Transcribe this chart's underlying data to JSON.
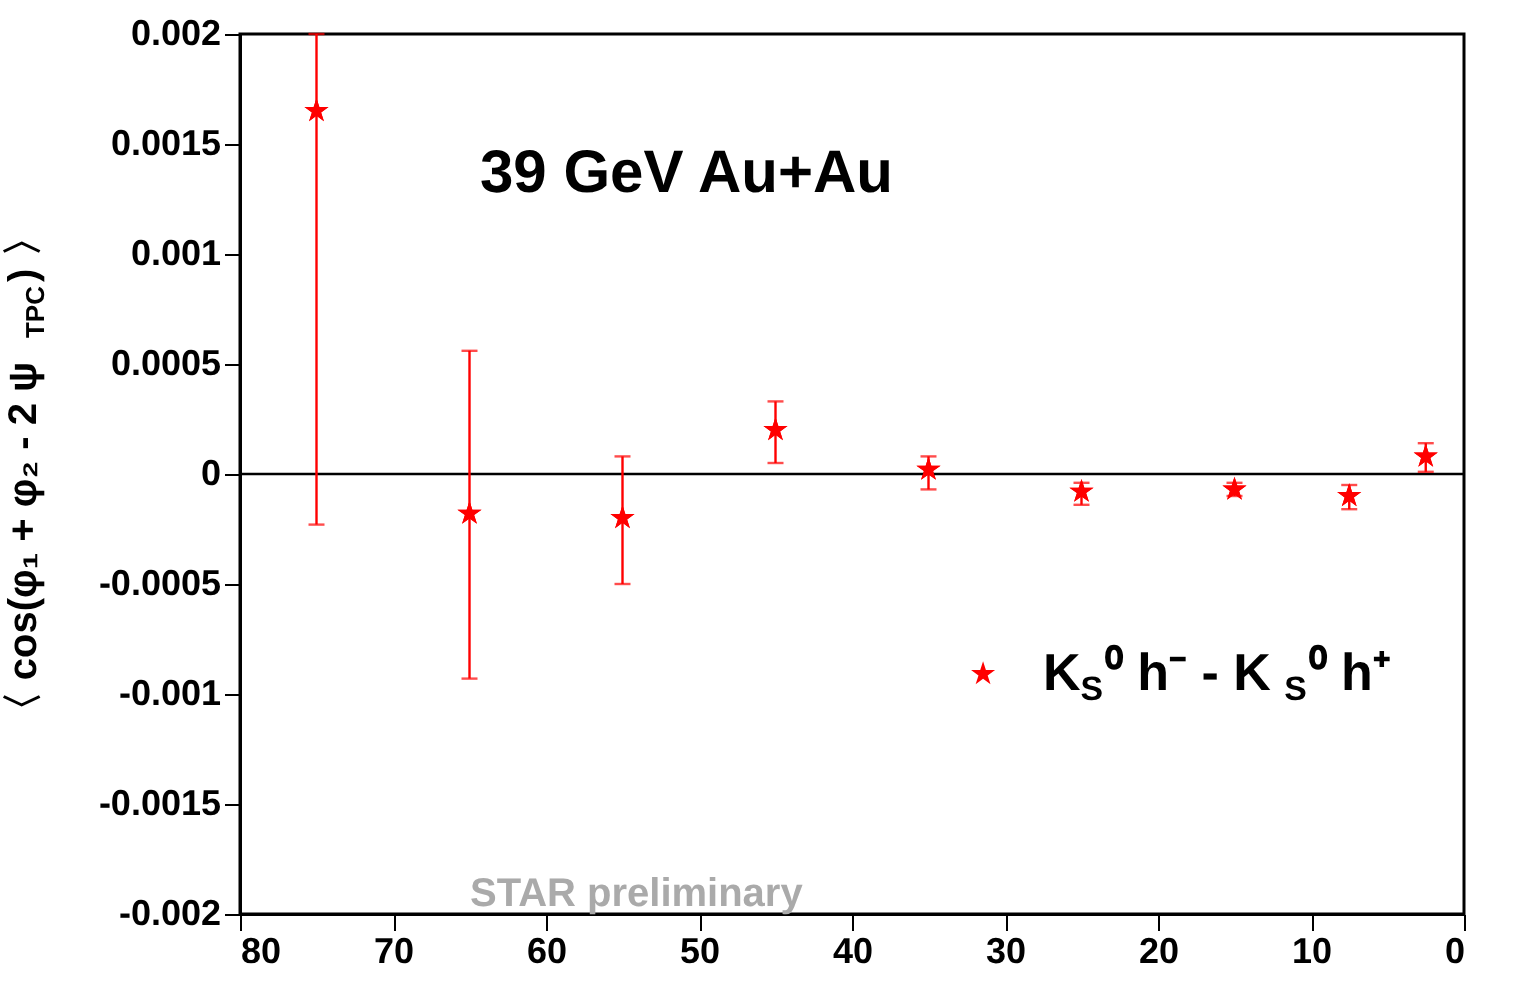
{
  "chart_data": {
    "type": "scatter",
    "ylabel": "〈 cos(φ₁ + φ₂ - 2 ψ$_{TPC}$) 〉",
    "x": [
      75,
      65,
      55,
      45,
      35,
      25,
      15,
      7.5,
      2.5
    ],
    "series": [
      {
        "name": "K$_{S}$⁰ h⁻ - K$_{S}$⁰ h⁺",
        "color": "#ff0000",
        "values": [
          0.00165,
          -0.00018,
          -0.0002,
          0.0002,
          2e-05,
          -8e-05,
          -7e-05,
          -0.0001,
          8e-05
        ],
        "errors": [
          [
            -0.00023,
            0.002
          ],
          [
            -0.00093,
            0.00056
          ],
          [
            -0.0005,
            8e-05
          ],
          [
            5e-05,
            0.00033
          ],
          [
            -7e-05,
            8e-05
          ],
          [
            -0.00014,
            -4e-05
          ],
          [
            -0.0001,
            -4e-05
          ],
          [
            -0.00016,
            -5e-05
          ],
          [
            1e-05,
            0.00014
          ]
        ]
      }
    ],
    "xlim": [
      80,
      0
    ],
    "xticks": [
      80,
      70,
      60,
      50,
      40,
      30,
      20,
      10,
      0
    ],
    "ylim": [
      -0.002,
      0.002
    ],
    "yticks": [
      -0.002,
      -0.0015,
      -0.001,
      -0.0005,
      0,
      0.0005,
      0.001,
      0.0015,
      0.002
    ],
    "ref_lines": [
      {
        "axis": "y",
        "value": 0,
        "color": "#000000"
      }
    ],
    "annotations": [
      "39 GeV Au+Au",
      "STAR preliminary"
    ],
    "marker": "star",
    "legend": "bottom right",
    "grid": false
  }
}
